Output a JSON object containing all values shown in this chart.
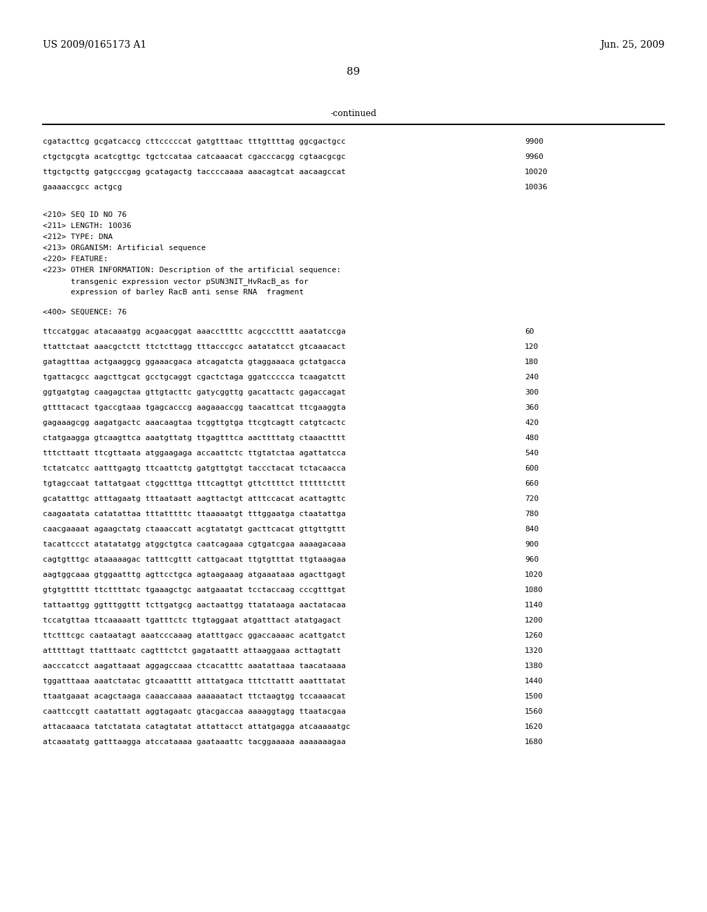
{
  "header_left": "US 2009/0165173 A1",
  "header_right": "Jun. 25, 2009",
  "page_number": "89",
  "continued_label": "-continued",
  "background_color": "#ffffff",
  "text_color": "#000000",
  "lines_top": [
    {
      "text": "cgatacttcg gcgatcaccg cttcccccat gatgtttaac tttgttttag ggcgactgcc",
      "num": "9900"
    },
    {
      "text": "ctgctgcgta acatcgttgc tgctccataa catcaaacat cgacccacgg cgtaacgcgc",
      "num": "9960"
    },
    {
      "text": "ttgctgcttg gatgcccgag gcatagactg taccccaaaa aaacagtcat aacaagccat",
      "num": "10020"
    },
    {
      "text": "gaaaaccgcc actgcg",
      "num": "10036"
    }
  ],
  "metadata_lines": [
    "<210> SEQ ID NO 76",
    "<211> LENGTH: 10036",
    "<212> TYPE: DNA",
    "<213> ORGANISM: Artificial sequence",
    "<220> FEATURE:",
    "<223> OTHER INFORMATION: Description of the artificial sequence:",
    "      transgenic expression vector pSUN3NIT_HvRacB_as for",
    "      expression of barley RacB anti sense RNA  fragment"
  ],
  "sequence_header": "<400> SEQUENCE: 76",
  "sequence_lines": [
    {
      "text": "ttccatggac atacaaatgg acgaacggat aaaccttttc acgccctttt aaatatccga",
      "num": "60"
    },
    {
      "text": "ttattctaat aaacgctctt ttctcttagg tttacccgcc aatatatcct gtcaaacact",
      "num": "120"
    },
    {
      "text": "gatagtttaa actgaaggcg ggaaacgaca atcagatcta gtaggaaaca gctatgacca",
      "num": "180"
    },
    {
      "text": "tgattacgcc aagcttgcat gcctgcaggt cgactctaga ggatccccca tcaagatctt",
      "num": "240"
    },
    {
      "text": "ggtgatgtag caagagctaa gttgtacttc gatycggttg gacattactc gagaccagat",
      "num": "300"
    },
    {
      "text": "gttttacact tgaccgtaaa tgagcacccg aagaaaccgg taacattcat ttcgaaggta",
      "num": "360"
    },
    {
      "text": "gagaaagcgg aagatgactc aaacaagtaa tcggttgtga ttcgtcagtt catgtcactc",
      "num": "420"
    },
    {
      "text": "ctatgaagga gtcaagttca aaatgttatg ttgagtttca aacttttatg ctaaactttt",
      "num": "480"
    },
    {
      "text": "tttcttaatt ttcgttaata atggaagaga accaattctc ttgtatctaa agattatcca",
      "num": "540"
    },
    {
      "text": "tctatcatcc aatttgagtg ttcaattctg gatgttgtgt taccctacat tctacaacca",
      "num": "600"
    },
    {
      "text": "tgtagccaat tattatgaat ctggctttga tttcagttgt gttcttttct ttttttcttt",
      "num": "660"
    },
    {
      "text": "gcatatttgc atttagaatg tttaataatt aagttactgt atttccacat acattagttc",
      "num": "720"
    },
    {
      "text": "caagaatata catatattaa tttatttttc ttaaaaatgt tttggaatga ctaatattga",
      "num": "780"
    },
    {
      "text": "caacgaaaat agaagctatg ctaaaccatt acgtatatgt gacttcacat gttgttgttt",
      "num": "840"
    },
    {
      "text": "tacattccct atatatatgg atggctgtca caatcagaaa cgtgatcgaa aaaagacaaa",
      "num": "900"
    },
    {
      "text": "cagtgtttgc ataaaaagac tatttcgttt cattgacaat ttgtgtttat ttgtaaagaa",
      "num": "960"
    },
    {
      "text": "aagtggcaaa gtggaatttg agttcctgca agtaagaaag atgaaataaa agacttgagt",
      "num": "1020"
    },
    {
      "text": "gtgtgttttt ttcttttatc tgaaagctgc aatgaaatat tcctaccaag cccgtttgat",
      "num": "1080"
    },
    {
      "text": "tattaattgg ggtttggttt tcttgatgcg aactaattgg ttatataaga aactatacaa",
      "num": "1140"
    },
    {
      "text": "tccatgttaa ttcaaaaatt tgatttctc ttgtaggaat atgatttact atatgagact",
      "num": "1200"
    },
    {
      "text": "ttctttcgc caataatagt aaatcccaaag atatttgacc ggaccaaaac acattgatct",
      "num": "1260"
    },
    {
      "text": "atttttagt ttatttaatc cagtttctct gagataattt attaaggaaa acttagtatt",
      "num": "1320"
    },
    {
      "text": "aacccatcct aagattaaat aggagccaaa ctcacatttc aaatattaaa taacataaaa",
      "num": "1380"
    },
    {
      "text": "tggatttaaa aaatctatac gtcaaatttt atttatgaca tttcttattt aaatttatat",
      "num": "1440"
    },
    {
      "text": "ttaatgaaat acagctaaga caaaccaaaa aaaaaatact ttctaagtgg tccaaaacat",
      "num": "1500"
    },
    {
      "text": "caattccgtt caatattatt aggtagaatc gtacgaccaa aaaaggtagg ttaatacgaa",
      "num": "1560"
    },
    {
      "text": "attacaaaca tatctatata catagtatat attattacct attatgagga atcaaaaatgc",
      "num": "1620"
    },
    {
      "text": "atcaaatatg gatttaagga atccataaaa gaataaattc tacggaaaaa aaaaaaagaa",
      "num": "1680"
    }
  ]
}
